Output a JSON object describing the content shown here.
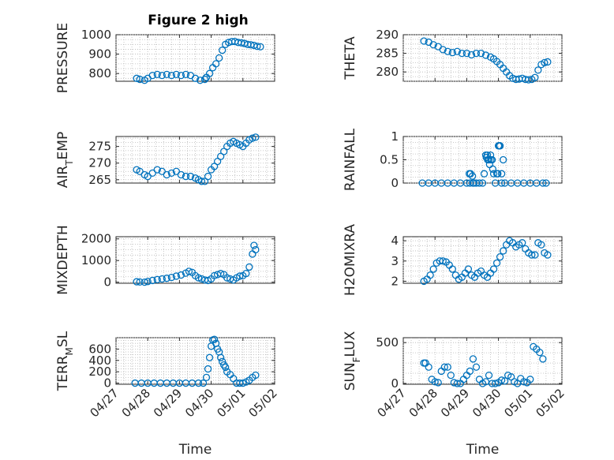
{
  "figure_title": "Figure 2 high",
  "colors": {
    "series": "#0072BD",
    "axes": "#262626",
    "grid": "#b8b8b8"
  },
  "x_axis": {
    "label": "Time",
    "ticks": [
      "04/27",
      "04/28",
      "04/29",
      "04/30",
      "05/01",
      "05/02"
    ],
    "range_days": [
      0,
      5
    ]
  },
  "chart_data": [
    {
      "type": "scatter",
      "ylabel": "PRESSURE",
      "ylim": [
        760,
        1000
      ],
      "yticks": [
        800,
        900,
        1000
      ],
      "grid": true,
      "x": [
        0.65,
        0.75,
        0.9,
        1.0,
        1.15,
        1.3,
        1.45,
        1.6,
        1.75,
        1.9,
        2.05,
        2.2,
        2.35,
        2.5,
        2.65,
        2.8,
        2.85,
        2.95,
        3.05,
        3.15,
        3.25,
        3.35,
        3.45,
        3.55,
        3.65,
        3.75,
        3.85,
        3.95,
        4.05,
        4.15,
        4.25,
        4.35,
        4.45,
        4.55
      ],
      "y": [
        775,
        770,
        765,
        775,
        790,
        795,
        790,
        795,
        790,
        795,
        790,
        795,
        790,
        775,
        765,
        770,
        780,
        800,
        830,
        850,
        880,
        920,
        950,
        960,
        965,
        965,
        960,
        958,
        955,
        950,
        948,
        945,
        940,
        938
      ]
    },
    {
      "type": "scatter",
      "ylabel": "THETA",
      "ylim": [
        277.5,
        290
      ],
      "yticks": [
        280,
        285,
        290
      ],
      "grid": true,
      "x": [
        0.65,
        0.8,
        0.95,
        1.1,
        1.25,
        1.4,
        1.55,
        1.7,
        1.85,
        2.0,
        2.15,
        2.3,
        2.45,
        2.6,
        2.75,
        2.85,
        2.95,
        3.05,
        3.15,
        3.25,
        3.35,
        3.45,
        3.55,
        3.65,
        3.75,
        3.85,
        3.95,
        4.05,
        4.15,
        4.25,
        4.35,
        4.45,
        4.55
      ],
      "y": [
        288.3,
        288.0,
        287.3,
        286.8,
        286.0,
        285.5,
        285.2,
        285.5,
        285.0,
        285.0,
        284.6,
        285.0,
        285.0,
        284.5,
        284.0,
        283.5,
        282.8,
        282.0,
        281.0,
        280.0,
        279.0,
        278.3,
        278.0,
        278.1,
        278.3,
        278.0,
        277.9,
        278.0,
        278.5,
        280.5,
        282.0,
        282.5,
        282.7
      ]
    },
    {
      "type": "scatter",
      "ylabel": "AIR_TEMP",
      "ylim": [
        264,
        278
      ],
      "yticks": [
        265,
        270,
        275
      ],
      "grid": true,
      "x": [
        0.65,
        0.75,
        0.9,
        1.0,
        1.15,
        1.3,
        1.45,
        1.6,
        1.75,
        1.9,
        2.05,
        2.2,
        2.35,
        2.5,
        2.6,
        2.7,
        2.8,
        2.9,
        3.0,
        3.1,
        3.2,
        3.3,
        3.4,
        3.5,
        3.6,
        3.7,
        3.8,
        3.9,
        4.0,
        4.1,
        4.2,
        4.3,
        4.4
      ],
      "y": [
        268,
        267.5,
        266.5,
        266.0,
        267.0,
        268.0,
        267.5,
        266.5,
        267.0,
        267.5,
        266.5,
        266.0,
        266.0,
        265.5,
        265.0,
        264.5,
        264.5,
        266.0,
        268.0,
        269.0,
        270.5,
        272.0,
        273.5,
        275.0,
        276.0,
        276.5,
        276.0,
        275.5,
        275.0,
        276.0,
        277.0,
        277.5,
        277.8
      ]
    },
    {
      "type": "scatter",
      "ylabel": "RAINFALL",
      "ylim": [
        0,
        1
      ],
      "yticks": [
        0,
        0.5,
        1
      ],
      "grid": true,
      "x": [
        0.6,
        0.8,
        1.0,
        1.2,
        1.4,
        1.6,
        1.8,
        2.0,
        2.1,
        2.2,
        2.3,
        2.4,
        2.5,
        2.55,
        2.6,
        2.65,
        2.7,
        2.75,
        2.8,
        2.85,
        2.9,
        2.95,
        3.0,
        3.05,
        3.1,
        3.15,
        3.2,
        3.4,
        3.6,
        3.8,
        4.0,
        4.2,
        4.4,
        4.5,
        2.08,
        2.12,
        2.18,
        2.22,
        2.62,
        2.66,
        2.72,
        2.76,
        2.82,
        2.98,
        3.02,
        3.1
      ],
      "y": [
        0,
        0,
        0,
        0,
        0,
        0,
        0,
        0,
        0,
        0,
        0,
        0,
        0,
        0.2,
        0.6,
        0.6,
        0.5,
        0.6,
        0.5,
        0.2,
        0,
        0.2,
        0.8,
        0.8,
        0.2,
        0.5,
        0,
        0,
        0,
        0,
        0,
        0,
        0,
        0,
        0.2,
        0.2,
        0.15,
        0,
        0.55,
        0.5,
        0.4,
        0.5,
        0.3,
        0.2,
        0.8,
        0
      ]
    },
    {
      "type": "scatter",
      "ylabel": "MIXDEPTH",
      "ylim": [
        -50,
        2100
      ],
      "yticks": [
        0,
        1000,
        2000
      ],
      "grid": true,
      "x": [
        0.65,
        0.75,
        0.9,
        1.0,
        1.15,
        1.3,
        1.45,
        1.6,
        1.75,
        1.9,
        2.05,
        2.2,
        2.3,
        2.4,
        2.5,
        2.6,
        2.7,
        2.8,
        2.9,
        3.0,
        3.1,
        3.2,
        3.3,
        3.4,
        3.5,
        3.6,
        3.7,
        3.8,
        3.9,
        4.0,
        4.1,
        4.2,
        4.3,
        4.35,
        4.4
      ],
      "y": [
        20,
        10,
        0,
        30,
        80,
        120,
        150,
        180,
        220,
        280,
        330,
        420,
        500,
        450,
        300,
        200,
        150,
        100,
        80,
        150,
        300,
        350,
        400,
        350,
        200,
        150,
        100,
        200,
        280,
        300,
        400,
        700,
        1300,
        1700,
        1500
      ]
    },
    {
      "type": "scatter",
      "ylabel": "H2OMIXRA",
      "ylim": [
        1.9,
        4.2
      ],
      "yticks": [
        2,
        3,
        4
      ],
      "grid": true,
      "x": [
        0.65,
        0.75,
        0.85,
        0.95,
        1.05,
        1.15,
        1.25,
        1.35,
        1.45,
        1.55,
        1.65,
        1.75,
        1.85,
        1.95,
        2.05,
        2.15,
        2.25,
        2.35,
        2.45,
        2.55,
        2.65,
        2.75,
        2.85,
        2.95,
        3.05,
        3.15,
        3.25,
        3.35,
        3.45,
        3.55,
        3.65,
        3.75,
        3.85,
        3.95,
        4.05,
        4.15,
        4.25,
        4.35,
        4.45,
        4.55
      ],
      "y": [
        2.0,
        2.1,
        2.3,
        2.6,
        2.9,
        3.0,
        3.0,
        2.95,
        2.8,
        2.6,
        2.3,
        2.1,
        2.2,
        2.4,
        2.6,
        2.3,
        2.2,
        2.4,
        2.5,
        2.3,
        2.2,
        2.4,
        2.6,
        2.9,
        3.2,
        3.5,
        3.8,
        4.0,
        3.9,
        3.7,
        3.8,
        3.9,
        3.6,
        3.4,
        3.3,
        3.3,
        3.9,
        3.8,
        3.4,
        3.3
      ]
    },
    {
      "type": "scatter",
      "ylabel": "TERR_MSL",
      "ylim": [
        -20,
        800
      ],
      "yticks": [
        0,
        200,
        400,
        600
      ],
      "grid": true,
      "x": [
        0.6,
        0.8,
        1.0,
        1.2,
        1.4,
        1.6,
        1.8,
        2.0,
        2.2,
        2.4,
        2.6,
        2.75,
        2.85,
        2.9,
        2.95,
        3.0,
        3.05,
        3.1,
        3.15,
        3.2,
        3.25,
        3.3,
        3.35,
        3.4,
        3.45,
        3.5,
        3.6,
        3.7,
        3.8,
        3.9,
        4.0,
        4.1,
        4.2,
        4.3,
        4.4
      ],
      "y": [
        0,
        0,
        0,
        0,
        0,
        0,
        0,
        0,
        0,
        0,
        0,
        0,
        100,
        250,
        450,
        650,
        760,
        770,
        700,
        600,
        550,
        450,
        380,
        320,
        280,
        200,
        150,
        80,
        0,
        0,
        0,
        20,
        50,
        100,
        140
      ]
    },
    {
      "type": "scatter",
      "ylabel": "SUN_FLUX",
      "ylim": [
        -10,
        560
      ],
      "yticks": [
        0,
        500
      ],
      "grid": true,
      "x": [
        0.65,
        0.7,
        0.8,
        0.9,
        1.0,
        1.1,
        1.2,
        1.3,
        1.4,
        1.5,
        1.6,
        1.7,
        1.8,
        1.9,
        2.0,
        2.1,
        2.2,
        2.3,
        2.4,
        2.5,
        2.6,
        2.7,
        2.8,
        2.9,
        3.0,
        3.1,
        3.2,
        3.3,
        3.4,
        3.5,
        3.6,
        3.7,
        3.8,
        3.9,
        4.0,
        4.1,
        4.2,
        4.3,
        4.4
      ],
      "y": [
        250,
        250,
        200,
        50,
        20,
        10,
        150,
        200,
        200,
        100,
        10,
        0,
        0,
        50,
        100,
        150,
        300,
        200,
        50,
        0,
        20,
        100,
        0,
        0,
        10,
        40,
        30,
        100,
        80,
        20,
        0,
        60,
        20,
        10,
        50,
        450,
        420,
        380,
        300
      ]
    }
  ]
}
